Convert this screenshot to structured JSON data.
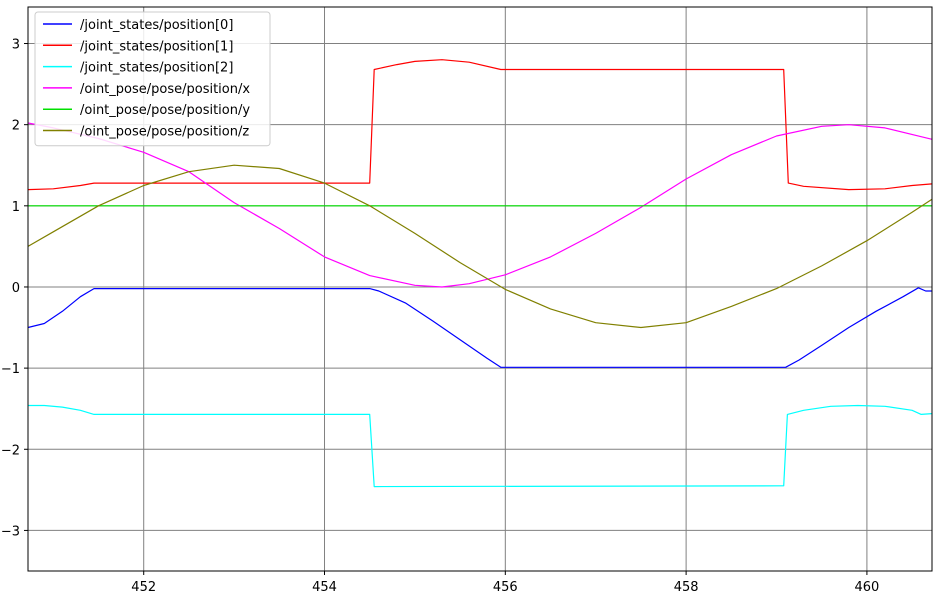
{
  "chart_data": {
    "type": "line",
    "title": "",
    "xlabel": "",
    "ylabel": "",
    "xlim": [
      450.72,
      460.72
    ],
    "ylim": [
      -3.5,
      3.45
    ],
    "grid": true,
    "legend_position": "top-left",
    "x_ticks": [
      452,
      454,
      456,
      458,
      460
    ],
    "x_tick_labels": [
      "452",
      "454",
      "456",
      "458",
      "460"
    ],
    "y_ticks": [
      -3,
      -2,
      -1,
      0,
      1,
      2,
      3
    ],
    "y_tick_labels": [
      "−3",
      "−2",
      "−1",
      "0",
      "1",
      "2",
      "3"
    ],
    "series": [
      {
        "name": "/joint_states/position[0]",
        "color": "#0000ff",
        "points": [
          [
            450.72,
            -0.5
          ],
          [
            450.9,
            -0.45
          ],
          [
            451.1,
            -0.3
          ],
          [
            451.3,
            -0.12
          ],
          [
            451.45,
            -0.02
          ],
          [
            454.5,
            -0.02
          ],
          [
            454.6,
            -0.05
          ],
          [
            454.9,
            -0.2
          ],
          [
            455.2,
            -0.42
          ],
          [
            455.5,
            -0.65
          ],
          [
            455.8,
            -0.88
          ],
          [
            455.95,
            -0.99
          ],
          [
            459.1,
            -0.99
          ],
          [
            459.25,
            -0.9
          ],
          [
            459.5,
            -0.72
          ],
          [
            459.8,
            -0.5
          ],
          [
            460.1,
            -0.3
          ],
          [
            460.4,
            -0.12
          ],
          [
            460.57,
            -0.01
          ],
          [
            460.65,
            -0.05
          ],
          [
            460.72,
            -0.05
          ]
        ]
      },
      {
        "name": "/joint_states/position[1]",
        "color": "#ff0000",
        "points": [
          [
            450.72,
            1.2
          ],
          [
            451.0,
            1.21
          ],
          [
            451.3,
            1.25
          ],
          [
            451.45,
            1.28
          ],
          [
            454.5,
            1.28
          ],
          [
            454.55,
            2.68
          ],
          [
            454.8,
            2.74
          ],
          [
            455.0,
            2.78
          ],
          [
            455.3,
            2.8
          ],
          [
            455.6,
            2.77
          ],
          [
            455.95,
            2.68
          ],
          [
            459.08,
            2.68
          ],
          [
            459.13,
            1.28
          ],
          [
            459.3,
            1.24
          ],
          [
            459.8,
            1.2
          ],
          [
            460.2,
            1.21
          ],
          [
            460.5,
            1.25
          ],
          [
            460.72,
            1.27
          ]
        ]
      },
      {
        "name": "/joint_states/position[2]",
        "color": "#00ffff",
        "points": [
          [
            450.72,
            -1.46
          ],
          [
            450.9,
            -1.46
          ],
          [
            451.1,
            -1.48
          ],
          [
            451.3,
            -1.52
          ],
          [
            451.45,
            -1.57
          ],
          [
            454.5,
            -1.57
          ],
          [
            454.55,
            -2.46
          ],
          [
            459.08,
            -2.45
          ],
          [
            459.12,
            -1.57
          ],
          [
            459.3,
            -1.52
          ],
          [
            459.6,
            -1.47
          ],
          [
            459.9,
            -1.46
          ],
          [
            460.2,
            -1.47
          ],
          [
            460.5,
            -1.52
          ],
          [
            460.6,
            -1.57
          ],
          [
            460.72,
            -1.56
          ]
        ]
      },
      {
        "name": "/oint_pose/pose/position/x",
        "color": "#ff00ff",
        "points": [
          [
            450.72,
            2.02
          ],
          [
            451.0,
            1.96
          ],
          [
            451.5,
            1.83
          ],
          [
            452.0,
            1.66
          ],
          [
            452.5,
            1.42
          ],
          [
            453.0,
            1.04
          ],
          [
            453.5,
            0.72
          ],
          [
            454.0,
            0.37
          ],
          [
            454.5,
            0.14
          ],
          [
            455.0,
            0.02
          ],
          [
            455.3,
            0.0
          ],
          [
            455.6,
            0.04
          ],
          [
            456.0,
            0.15
          ],
          [
            456.5,
            0.37
          ],
          [
            457.0,
            0.66
          ],
          [
            457.5,
            0.98
          ],
          [
            458.0,
            1.33
          ],
          [
            458.5,
            1.63
          ],
          [
            459.0,
            1.86
          ],
          [
            459.5,
            1.98
          ],
          [
            459.8,
            2.0
          ],
          [
            460.2,
            1.96
          ],
          [
            460.72,
            1.82
          ]
        ]
      },
      {
        "name": "/oint_pose/pose/position/y",
        "color": "#00e000",
        "points": [
          [
            450.72,
            1.0
          ],
          [
            460.72,
            1.0
          ]
        ]
      },
      {
        "name": "/oint_pose/pose/position/z",
        "color": "#808000",
        "points": [
          [
            450.72,
            0.5
          ],
          [
            451.0,
            0.68
          ],
          [
            451.5,
            1.0
          ],
          [
            452.0,
            1.25
          ],
          [
            452.5,
            1.42
          ],
          [
            453.0,
            1.5
          ],
          [
            453.5,
            1.46
          ],
          [
            454.0,
            1.28
          ],
          [
            454.5,
            1.0
          ],
          [
            455.0,
            0.66
          ],
          [
            455.5,
            0.3
          ],
          [
            456.0,
            -0.03
          ],
          [
            456.5,
            -0.27
          ],
          [
            457.0,
            -0.44
          ],
          [
            457.5,
            -0.5
          ],
          [
            458.0,
            -0.44
          ],
          [
            458.5,
            -0.24
          ],
          [
            459.0,
            -0.02
          ],
          [
            459.5,
            0.26
          ],
          [
            460.0,
            0.57
          ],
          [
            460.5,
            0.92
          ],
          [
            460.72,
            1.08
          ]
        ]
      }
    ]
  }
}
